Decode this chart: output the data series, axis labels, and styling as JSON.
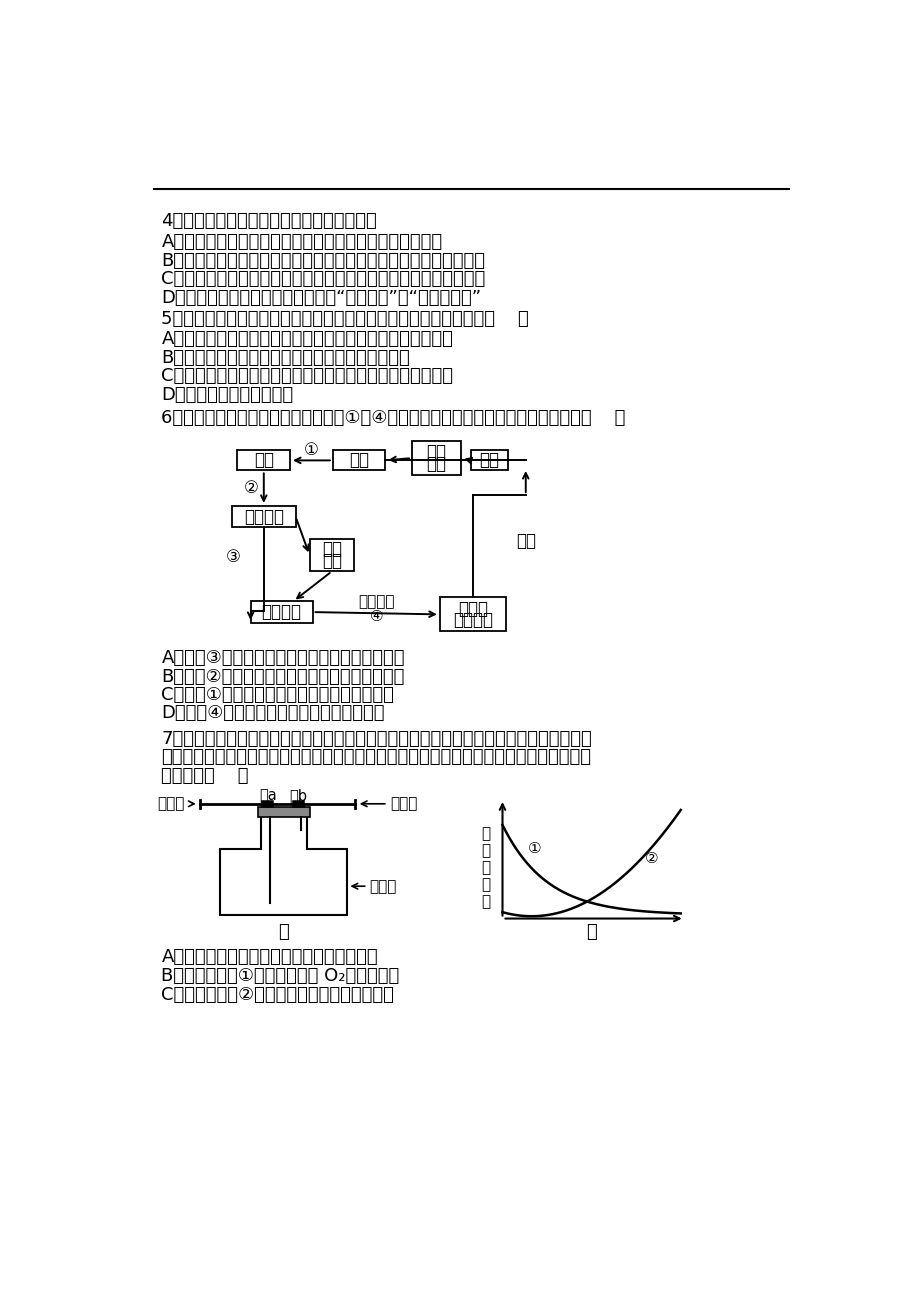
{
  "bg_color": "#ffffff",
  "q4_text": "4．下列有关胚胎工程的说法，正确的是（）",
  "q4_A": "A．排卵是指卵泡从卵巢中排出，而不是卵子从卵泡中排出",
  "q4_B": "B．受精过程完成的标志是在透明带和卵细胞膜之间观察到两个极体",
  "q4_C": "C．胚胎在囊胚阶段开始分化，在桑椰胚和囊胚阶段可以移植或分割",
  "q4_D": "D．防止多精入卵受精的两道屏障是“顶体反应”和“透明带反应”",
  "q5_text": "5．下列关于菊花组织培养技术与月季花药培养技术的叙述错误的是（    ）",
  "q5_A": "A．两者的培养基配制方法、无菌技术及接种操作等基本相同",
  "q5_B": "B．花药培养的选材很重要，需选择适宜时期的花蕃",
  "q5_C": "C．若某二倍体植物同时进行这两项技术，结果都能得到纯种",
  "q5_D": "D．前者是后者操作的基础",
  "q6_text": "6．下图表示牛胚胎移植的流程，其中①～④表示相应的操作过程。相关叙述错误的是（    ）",
  "q6_A": "A．过程③主要涉及人工授精和从卵巢中冲取胚胎",
  "q6_B": "B．过程②注射促性腺激素，达到超数排卵的目的",
  "q6_C": "C．过程①注射相关激素，使供、受体同期发情",
  "q6_D": "D．过程④的主要目的是选择适合移植的胚胎",
  "q7_line1": "7．葡萄酒是葡萄果汁经酵母菌发酵而成的，图甲为酥制葡萄酒的实验装置，在其他条件相",
  "q7_line2": "同且适宜的情况下，测得一段时间内装置中相关物质含量的变化如曲线乙所示，下列叙述不",
  "q7_line3": "正确的是（    ）",
  "q7_A": "A．为避免杂菌污染，葡萄汁需高压蝎汽灭菌",
  "q7_B": "B．图乙中曲线①表示装置甲中 O₂浓度的变化",
  "q7_C": "C．图乙中曲线②表示装置甲中酒精浓度的变化"
}
